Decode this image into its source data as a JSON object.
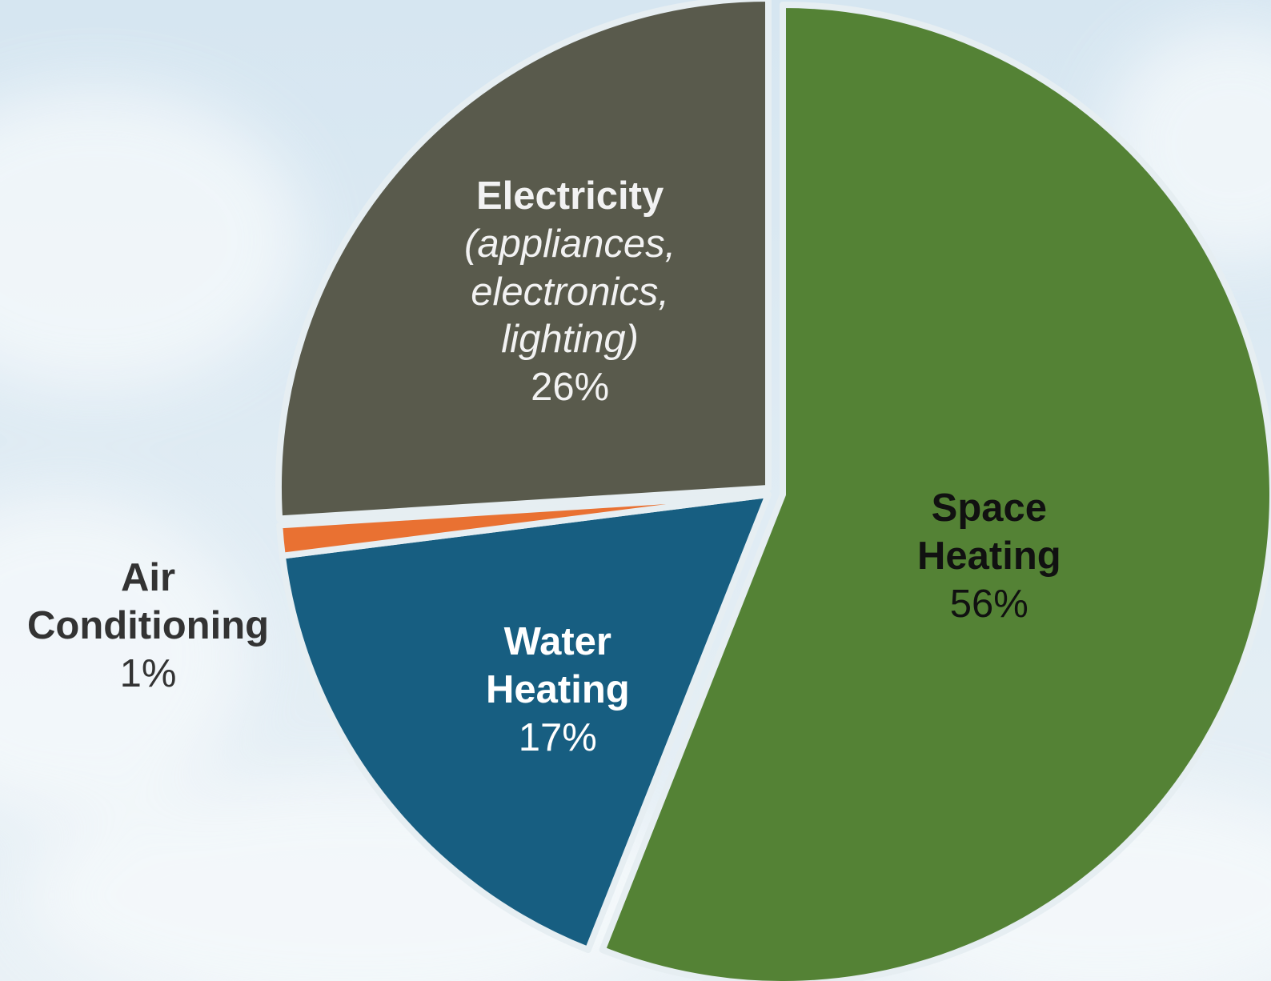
{
  "chart_data": {
    "type": "pie",
    "title": "",
    "slices": [
      {
        "name": "Space Heating",
        "subtitle": "",
        "value": 56,
        "value_label": "56%",
        "color": "#548235",
        "text_color": "#111111"
      },
      {
        "name": "Water Heating",
        "subtitle": "",
        "value": 17,
        "value_label": "17%",
        "color": "#175e81",
        "text_color": "#ffffff"
      },
      {
        "name": "Air Conditioning",
        "subtitle": "",
        "value": 1,
        "value_label": "1%",
        "color": "#e97132",
        "text_color": "#333333"
      },
      {
        "name": "Electricity",
        "subtitle": "(appliances, electronics, lighting)",
        "value": 26,
        "value_label": "26%",
        "color": "#595a4c",
        "text_color": "#f2f2f2"
      }
    ],
    "start_angle_deg": 0,
    "direction": "clockwise",
    "separator_color": "#e6eef2",
    "legend": "none",
    "background": {
      "sky_top": "#d6e6f1",
      "sky_bottom": "#e9f1f6",
      "cloud": "#f7fafc"
    }
  }
}
